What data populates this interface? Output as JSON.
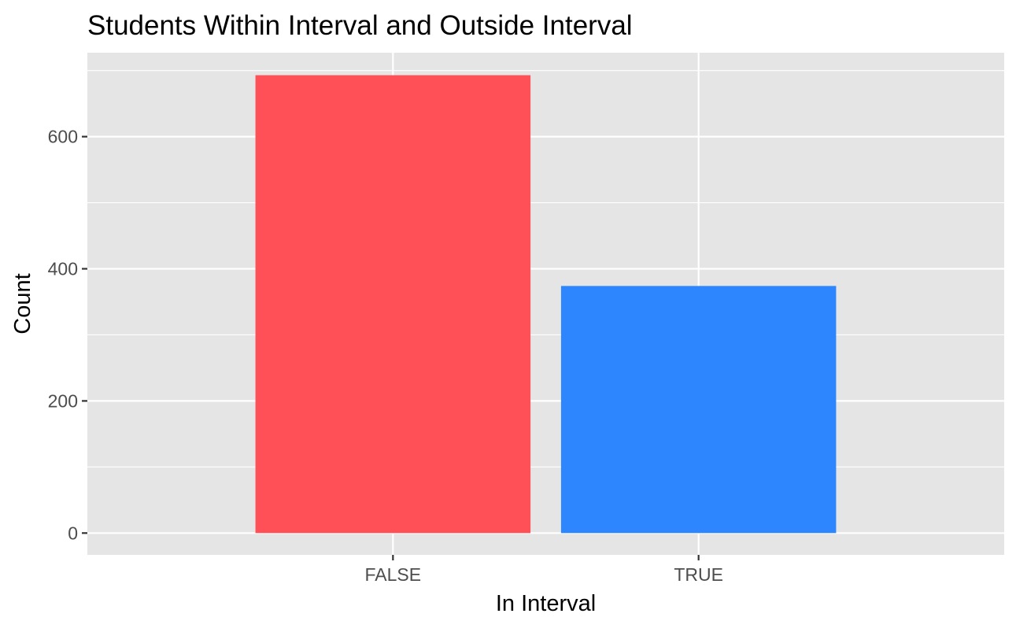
{
  "chart_data": {
    "type": "bar",
    "title": "Students Within Interval and Outside Interval",
    "xlabel": "In Interval",
    "ylabel": "Count",
    "categories": [
      "FALSE",
      "TRUE"
    ],
    "values": [
      693,
      374
    ],
    "colors": [
      "#F8766D",
      "#00BFC4"
    ],
    "bar_colors": [
      "#FF5057",
      "#2E86FF"
    ],
    "ylim": [
      -33,
      727
    ],
    "yticks": [
      0,
      200,
      400,
      600
    ],
    "ytick_labels": [
      "0",
      "200",
      "400",
      "600"
    ],
    "grid": true,
    "panel_background": "#E5E5E5",
    "gridline_color": "#FFFFFF",
    "legend": "none"
  }
}
